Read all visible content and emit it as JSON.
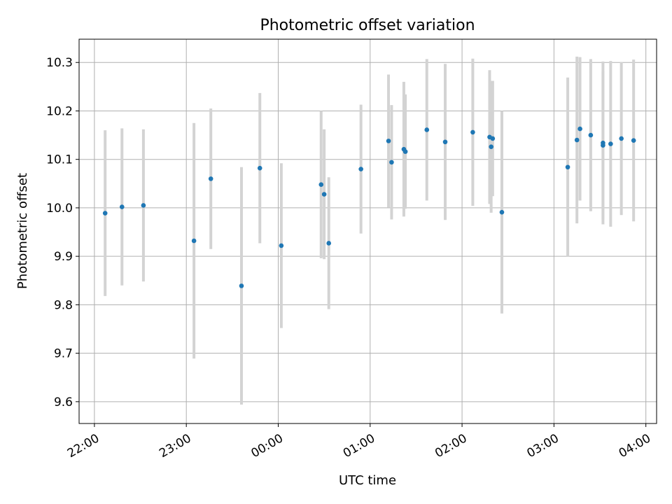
{
  "chart_data": {
    "type": "scatter",
    "title": "Photometric offset variation",
    "xlabel": "UTC time",
    "ylabel": "Photometric offset",
    "xlim": [
      "21:50",
      "04:07"
    ],
    "ylim": [
      9.555,
      10.348
    ],
    "grid": true,
    "x_tick_labels": [
      "22:00",
      "23:00",
      "00:00",
      "01:00",
      "02:00",
      "03:00",
      "04:00"
    ],
    "y_tick_labels": [
      "9.6",
      "9.7",
      "9.8",
      "9.9",
      "10.0",
      "10.1",
      "10.2",
      "10.3"
    ],
    "colors": {
      "point": "#1f77b4",
      "errorbar": "#d3d3d3",
      "grid": "#b0b0b0"
    },
    "points": [
      {
        "t": "22:07",
        "y": 9.989,
        "err": 0.171
      },
      {
        "t": "22:18",
        "y": 10.002,
        "err": 0.162
      },
      {
        "t": "22:32",
        "y": 10.005,
        "err": 0.157
      },
      {
        "t": "23:05",
        "y": 9.932,
        "err": 0.243
      },
      {
        "t": "23:16",
        "y": 10.06,
        "err": 0.145
      },
      {
        "t": "23:36",
        "y": 9.839,
        "err": 0.245
      },
      {
        "t": "23:48",
        "y": 10.082,
        "err": 0.155
      },
      {
        "t": "00:02",
        "y": 9.922,
        "err": 0.17
      },
      {
        "t": "00:28",
        "y": 10.048,
        "err": 0.152
      },
      {
        "t": "00:30",
        "y": 10.028,
        "err": 0.134
      },
      {
        "t": "00:33",
        "y": 9.927,
        "err": 0.136
      },
      {
        "t": "00:54",
        "y": 10.08,
        "err": 0.133
      },
      {
        "t": "01:12",
        "y": 10.138,
        "err": 0.137
      },
      {
        "t": "01:14",
        "y": 10.094,
        "err": 0.118
      },
      {
        "t": "01:22",
        "y": 10.121,
        "err": 0.139
      },
      {
        "t": "01:23",
        "y": 10.116,
        "err": 0.118
      },
      {
        "t": "01:37",
        "y": 10.161,
        "err": 0.146
      },
      {
        "t": "01:49",
        "y": 10.136,
        "err": 0.161
      },
      {
        "t": "02:07",
        "y": 10.156,
        "err": 0.152
      },
      {
        "t": "02:18",
        "y": 10.146,
        "err": 0.138
      },
      {
        "t": "02:19",
        "y": 10.126,
        "err": 0.136
      },
      {
        "t": "02:20",
        "y": 10.143,
        "err": 0.119
      },
      {
        "t": "02:26",
        "y": 9.991,
        "err": 0.209
      },
      {
        "t": "03:09",
        "y": 10.084,
        "err": 0.185
      },
      {
        "t": "03:15",
        "y": 10.14,
        "err": 0.172
      },
      {
        "t": "03:17",
        "y": 10.163,
        "err": 0.148
      },
      {
        "t": "03:24",
        "y": 10.15,
        "err": 0.157
      },
      {
        "t": "03:32",
        "y": 10.134,
        "err": 0.168
      },
      {
        "t": "03:32",
        "y": 10.129,
        "err": 0.153
      },
      {
        "t": "03:37",
        "y": 10.132,
        "err": 0.171
      },
      {
        "t": "03:44",
        "y": 10.143,
        "err": 0.158
      },
      {
        "t": "03:52",
        "y": 10.139,
        "err": 0.167
      }
    ]
  }
}
